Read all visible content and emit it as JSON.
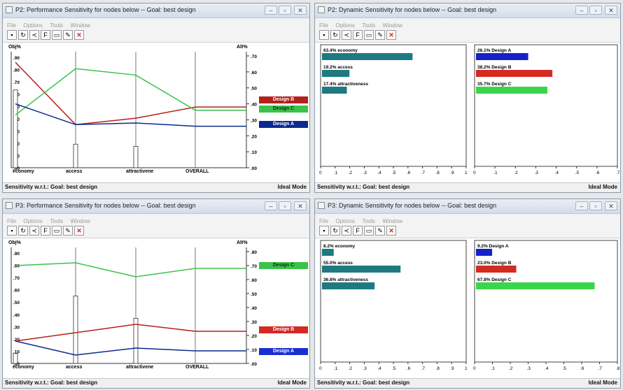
{
  "colors": {
    "design_a": "#0b2a8f",
    "design_b": "#b3211b",
    "design_c": "#3bc24a",
    "teal": "#1e7a80"
  },
  "windows": {
    "w1": {
      "title": "P2: Performance Sensitivity for nodes below -- Goal: best design",
      "menu": [
        "File",
        "Options",
        "Tools",
        "Window"
      ],
      "status_left": "Sensitivity w.r.t.: Goal: best design",
      "status_right": "Ideal Mode",
      "axis_left_label": "Obj%",
      "axis_right_label": "Alt%",
      "left_ticks": [
        ".90",
        ".80",
        ".70",
        ".60",
        ".50",
        ".40",
        ".30",
        ".20",
        ".10",
        ".00"
      ],
      "right_ticks": [
        ".70",
        ".60",
        ".50",
        ".40",
        ".30",
        ".20",
        ".10",
        ".00"
      ],
      "categories": [
        "economy",
        "access",
        "attractivene",
        "OVERALL"
      ],
      "legend": [
        "Design B",
        "Design C",
        "Design A"
      ]
    },
    "w2": {
      "title": "P2: Dynamic Sensitivity for nodes below -- Goal: best design",
      "menu": [
        "File",
        "Options",
        "Tools",
        "Window"
      ],
      "status_left": "Sensitivity w.r.t.: Goal: best design",
      "status_right": "Ideal Mode",
      "left_bars": [
        {
          "label": "63.4% economy",
          "value": 0.634
        },
        {
          "label": "19.2% access",
          "value": 0.192
        },
        {
          "label": "17.4% attractiveness",
          "value": 0.174
        }
      ],
      "right_bars": [
        {
          "label": "26.1% Design A",
          "value": 0.261
        },
        {
          "label": "38.2% Design B",
          "value": 0.382
        },
        {
          "label": "35.7% Design C",
          "value": 0.357
        }
      ],
      "left_ticks": [
        "0",
        ".1",
        ".2",
        ".3",
        ".4",
        ".5",
        ".6",
        ".7",
        ".8",
        ".9",
        "1"
      ],
      "right_ticks": [
        "0",
        ".1",
        ".2",
        ".3",
        ".4",
        ".5",
        ".6",
        ".7"
      ]
    },
    "w3": {
      "title": "P3: Performance Sensitivity for nodes below -- Goal: best design",
      "menu": [
        "File",
        "Options",
        "Tools",
        "Window"
      ],
      "status_left": "Sensitivity w.r.t.: Goal: best design",
      "status_right": "Ideal Mode",
      "axis_left_label": "Obj%",
      "axis_right_label": "Alt%",
      "left_ticks": [
        ".90",
        ".80",
        ".70",
        ".60",
        ".50",
        ".40",
        ".30",
        ".20",
        ".10",
        ".00"
      ],
      "right_ticks": [
        ".80",
        ".70",
        ".60",
        ".50",
        ".40",
        ".30",
        ".20",
        ".10",
        ".00"
      ],
      "categories": [
        "economy",
        "access",
        "attractivene",
        "OVERALL"
      ],
      "legend": [
        "Design C",
        "Design B",
        "Design A"
      ]
    },
    "w4": {
      "title": "P3: Dynamic Sensitivity for nodes below -- Goal: best design",
      "menu": [
        "File",
        "Options",
        "Tools",
        "Window"
      ],
      "status_left": "Sensitivity w.r.t.: Goal: best design",
      "status_right": "Ideal Mode",
      "left_bars": [
        {
          "label": "8.2% economy",
          "value": 0.082
        },
        {
          "label": "55.0% access",
          "value": 0.55
        },
        {
          "label": "36.8% attractiveness",
          "value": 0.368
        }
      ],
      "right_bars": [
        {
          "label": "9.2% Design A",
          "value": 0.092
        },
        {
          "label": "23.0% Design B",
          "value": 0.23
        },
        {
          "label": "67.8% Design C",
          "value": 0.678
        }
      ],
      "left_ticks": [
        "0",
        ".1",
        ".2",
        ".3",
        ".4",
        ".5",
        ".6",
        ".7",
        ".8",
        ".9",
        "1"
      ],
      "right_ticks": [
        "0",
        ".1",
        ".2",
        ".3",
        ".4",
        ".5",
        ".6",
        ".7",
        ".8"
      ]
    }
  },
  "chart_data": [
    {
      "type": "line",
      "title": "",
      "categories": [
        "economy",
        "access",
        "attractivene",
        "OVERALL"
      ],
      "objective_bars": [
        0.634,
        0.192,
        0.174
      ],
      "series": [
        {
          "name": "Design B",
          "values": [
            0.66,
            0.27,
            0.31,
            0.38
          ]
        },
        {
          "name": "Design C",
          "values": [
            0.33,
            0.62,
            0.58,
            0.36
          ]
        },
        {
          "name": "Design A",
          "values": [
            0.4,
            0.27,
            0.28,
            0.26
          ]
        }
      ],
      "ylim": [
        0,
        0.7
      ]
    },
    {
      "type": "bar",
      "categories": [
        "economy",
        "access",
        "attractiveness"
      ],
      "values": [
        0.634,
        0.192,
        0.174
      ],
      "xlim": [
        0,
        1
      ]
    },
    {
      "type": "bar",
      "categories": [
        "Design A",
        "Design B",
        "Design C"
      ],
      "values": [
        0.261,
        0.382,
        0.357
      ],
      "xlim": [
        0,
        0.7
      ]
    },
    {
      "type": "line",
      "title": "",
      "categories": [
        "economy",
        "access",
        "attractivene",
        "OVERALL"
      ],
      "objective_bars": [
        0.082,
        0.55,
        0.368
      ],
      "series": [
        {
          "name": "Design C",
          "values": [
            0.7,
            0.72,
            0.62,
            0.68
          ]
        },
        {
          "name": "Design B",
          "values": [
            0.16,
            0.22,
            0.28,
            0.23
          ]
        },
        {
          "name": "Design A",
          "values": [
            0.16,
            0.06,
            0.11,
            0.09
          ]
        }
      ],
      "ylim": [
        0,
        0.8
      ]
    },
    {
      "type": "bar",
      "categories": [
        "economy",
        "access",
        "attractiveness"
      ],
      "values": [
        0.082,
        0.55,
        0.368
      ],
      "xlim": [
        0,
        1
      ]
    },
    {
      "type": "bar",
      "categories": [
        "Design A",
        "Design B",
        "Design C"
      ],
      "values": [
        0.092,
        0.23,
        0.678
      ],
      "xlim": [
        0,
        0.8
      ]
    }
  ]
}
